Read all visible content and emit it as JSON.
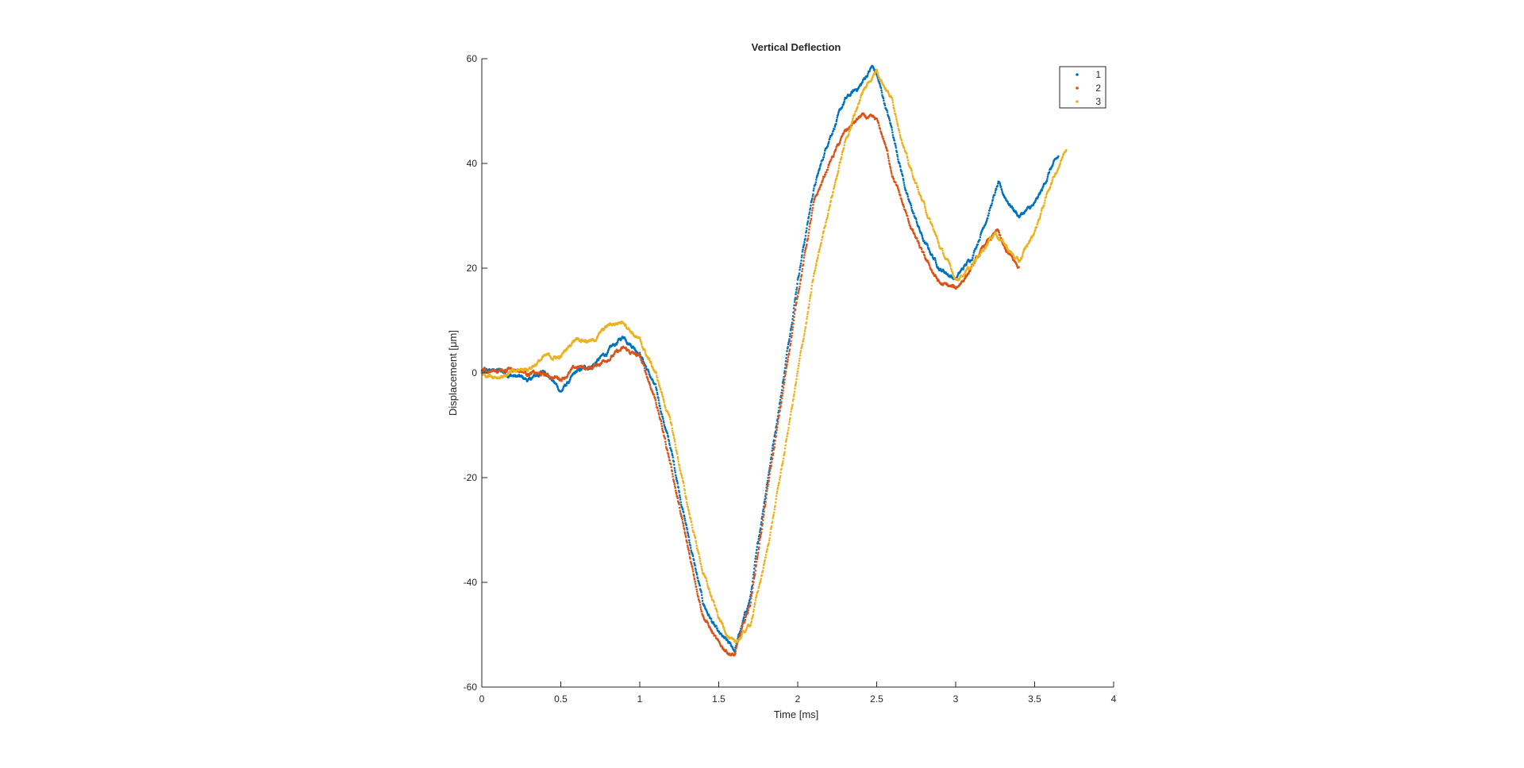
{
  "chart_data": {
    "type": "scatter",
    "title": "Vertical Deflection",
    "xlabel": "Time [ms]",
    "ylabel": "Displacement [μm]",
    "xlim": [
      0,
      4
    ],
    "ylim": [
      -60,
      60
    ],
    "xticks": [
      0,
      0.5,
      1,
      1.5,
      2,
      2.5,
      3,
      3.5,
      4
    ],
    "xtick_labels": [
      "0",
      "0.5",
      "1",
      "1.5",
      "2",
      "2.5",
      "3",
      "3.5",
      "4"
    ],
    "yticks": [
      -60,
      -40,
      -20,
      0,
      20,
      40,
      60
    ],
    "ytick_labels": [
      "-60",
      "-40",
      "-20",
      "0",
      "20",
      "40",
      "60"
    ],
    "grid": false,
    "legend_position": "top-right",
    "series": [
      {
        "name": "1",
        "color": "#0072BD",
        "x": [
          0,
          0.1,
          0.2,
          0.3,
          0.4,
          0.5,
          0.6,
          0.7,
          0.8,
          0.9,
          1.0,
          1.1,
          1.2,
          1.3,
          1.4,
          1.5,
          1.6,
          1.7,
          1.8,
          1.9,
          2.0,
          2.1,
          2.2,
          2.3,
          2.4,
          2.47,
          2.5,
          2.6,
          2.7,
          2.8,
          2.9,
          3.0,
          3.1,
          3.2,
          3.27,
          3.3,
          3.4,
          3.5,
          3.55,
          3.6,
          3.65
        ],
        "y": [
          0,
          0.5,
          -0.5,
          -1.5,
          0.5,
          -3.5,
          0,
          1.5,
          4,
          7,
          4,
          -3,
          -15,
          -30,
          -44,
          -50,
          -53,
          -43,
          -22,
          -3,
          18,
          35,
          45,
          52,
          55,
          58.5,
          57,
          46,
          33,
          25,
          20,
          18,
          22,
          30,
          36,
          34,
          30,
          32,
          35,
          39,
          41
        ]
      },
      {
        "name": "2",
        "color": "#D95319",
        "x": [
          0,
          0.1,
          0.2,
          0.3,
          0.4,
          0.5,
          0.6,
          0.7,
          0.8,
          0.9,
          1.0,
          1.1,
          1.2,
          1.3,
          1.4,
          1.5,
          1.6,
          1.7,
          1.8,
          1.9,
          2.0,
          2.1,
          2.2,
          2.3,
          2.4,
          2.5,
          2.55,
          2.6,
          2.7,
          2.8,
          2.9,
          3.0,
          3.1,
          3.2,
          3.27,
          3.3,
          3.4
        ],
        "y": [
          0.5,
          0.5,
          1,
          0,
          -0.5,
          -1,
          1,
          1,
          3,
          4.5,
          3,
          -5,
          -18,
          -33,
          -46,
          -52,
          -54,
          -44,
          -24,
          -5,
          15,
          32,
          40,
          46,
          49,
          48,
          44,
          38,
          29,
          22,
          17,
          16,
          20,
          25,
          27,
          24,
          20
        ]
      },
      {
        "name": "3",
        "color": "#EDB120",
        "x": [
          0,
          0.1,
          0.2,
          0.3,
          0.4,
          0.5,
          0.6,
          0.7,
          0.8,
          0.9,
          1.0,
          1.1,
          1.2,
          1.3,
          1.4,
          1.5,
          1.6,
          1.7,
          1.8,
          1.9,
          2.0,
          2.1,
          2.2,
          2.3,
          2.4,
          2.5,
          2.6,
          2.7,
          2.8,
          2.9,
          3.0,
          3.1,
          3.2,
          3.25,
          3.3,
          3.4,
          3.5,
          3.6,
          3.7
        ],
        "y": [
          0,
          -0.5,
          0,
          1,
          3,
          3,
          7,
          6,
          9,
          10,
          6,
          0,
          -10,
          -25,
          -38,
          -47,
          -52,
          -48,
          -35,
          -18,
          0,
          18,
          32,
          44,
          53,
          58,
          52,
          40,
          32,
          24,
          18,
          20,
          25,
          27,
          25,
          21,
          27,
          36,
          43
        ]
      }
    ]
  }
}
